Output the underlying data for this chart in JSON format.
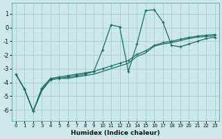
{
  "xlabel": "Humidex (Indice chaleur)",
  "background_color": "#cce8e8",
  "grid_color": "#a8cccc",
  "line_color": "#1a6b6b",
  "xlim": [
    -0.5,
    23.5
  ],
  "ylim": [
    -6.8,
    1.8
  ],
  "yticks": [
    1,
    0,
    -1,
    -2,
    -3,
    -4,
    -5,
    -6
  ],
  "xticks": [
    0,
    1,
    2,
    3,
    4,
    5,
    6,
    7,
    8,
    9,
    10,
    11,
    12,
    13,
    14,
    15,
    16,
    17,
    18,
    19,
    20,
    21,
    22,
    23
  ],
  "series1_x": [
    0,
    1,
    2,
    3,
    4,
    5,
    6,
    7,
    8,
    9,
    10,
    11,
    12,
    13,
    14,
    15,
    16,
    17,
    18,
    19,
    20,
    21,
    22,
    23
  ],
  "series1_y": [
    -3.4,
    -4.5,
    -6.1,
    -4.6,
    -3.8,
    -3.7,
    -3.7,
    -3.6,
    -3.5,
    -3.4,
    -3.2,
    -3.0,
    -2.8,
    -2.6,
    -2.1,
    -1.85,
    -1.35,
    -1.2,
    -1.1,
    -0.95,
    -0.8,
    -0.7,
    -0.65,
    -0.6
  ],
  "series2_x": [
    0,
    1,
    2,
    3,
    4,
    5,
    6,
    7,
    8,
    9,
    10,
    11,
    12,
    13,
    14,
    15,
    16,
    17,
    18,
    19,
    20,
    21,
    22,
    23
  ],
  "series2_y": [
    -3.4,
    -4.5,
    -6.1,
    -4.5,
    -3.8,
    -3.7,
    -3.6,
    -3.5,
    -3.4,
    -3.2,
    -1.65,
    0.2,
    0.05,
    -3.2,
    -1.2,
    1.25,
    1.3,
    0.4,
    -1.3,
    -1.4,
    -1.2,
    -1.0,
    -0.8,
    -0.7
  ],
  "series3_x": [
    0,
    1,
    2,
    3,
    4,
    5,
    6,
    7,
    8,
    9,
    10,
    11,
    12,
    13,
    14,
    15,
    16,
    17,
    18,
    19,
    20,
    21,
    22,
    23
  ],
  "series3_y": [
    -3.4,
    -4.5,
    -6.1,
    -4.4,
    -3.7,
    -3.6,
    -3.5,
    -3.4,
    -3.3,
    -3.2,
    -3.0,
    -2.8,
    -2.6,
    -2.4,
    -1.95,
    -1.7,
    -1.3,
    -1.1,
    -1.0,
    -0.85,
    -0.72,
    -0.62,
    -0.55,
    -0.5
  ]
}
